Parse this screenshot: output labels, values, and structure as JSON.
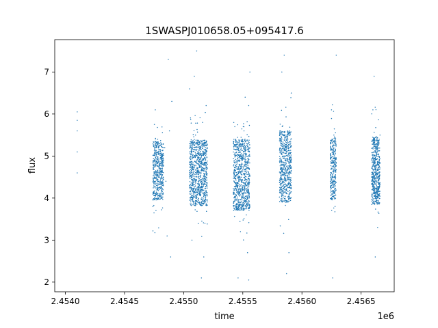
{
  "chart_data": {
    "type": "scatter",
    "title": "1SWASPJ010658.05+095417.6",
    "xlabel": "time",
    "ylabel": "flux",
    "x_offset_label": "1e6",
    "xlim": [
      2.45391,
      2.45678
    ],
    "ylim": [
      1.77,
      7.77
    ],
    "x_ticks": [
      {
        "value": 2.454,
        "label": "2.4540"
      },
      {
        "value": 2.4545,
        "label": "2.4545"
      },
      {
        "value": 2.455,
        "label": "2.4550"
      },
      {
        "value": 2.4555,
        "label": "2.4555"
      },
      {
        "value": 2.456,
        "label": "2.4560"
      },
      {
        "value": 2.4565,
        "label": "2.4565"
      }
    ],
    "y_ticks": [
      {
        "value": 2,
        "label": "2"
      },
      {
        "value": 3,
        "label": "3"
      },
      {
        "value": 4,
        "label": "4"
      },
      {
        "value": 5,
        "label": "5"
      },
      {
        "value": 6,
        "label": "6"
      },
      {
        "value": 7,
        "label": "7"
      }
    ],
    "grid": false,
    "point_color": "#1f77b4",
    "series": [
      {
        "values": [
          [
            2.4541,
            6.05
          ],
          [
            2.4541,
            5.85
          ],
          [
            2.4541,
            5.6
          ],
          [
            2.4541,
            5.1
          ],
          [
            2.4541,
            4.6
          ],
          [
            2.45475,
            4.9
          ],
          [
            2.45477,
            4.3
          ],
          [
            2.45478,
            5.4
          ],
          [
            2.4548,
            4.05
          ],
          [
            2.45481,
            5.0
          ],
          [
            2.45474,
            3.8
          ],
          [
            2.45482,
            4.7
          ],
          [
            2.45484,
            5.2
          ],
          [
            2.45485,
            4.4
          ],
          [
            2.45486,
            3.1
          ],
          [
            2.45488,
            5.6
          ],
          [
            2.45489,
            2.6
          ],
          [
            2.4549,
            6.3
          ],
          [
            2.45487,
            7.3
          ],
          [
            2.45476,
            6.1
          ],
          [
            2.45506,
            5.0
          ],
          [
            2.45508,
            4.2
          ],
          [
            2.4551,
            5.5
          ],
          [
            2.45512,
            3.9
          ],
          [
            2.45514,
            4.6
          ],
          [
            2.45516,
            5.8
          ],
          [
            2.45505,
            6.6
          ],
          [
            2.45518,
            3.4
          ],
          [
            2.4552,
            4.8
          ],
          [
            2.45511,
            7.5
          ],
          [
            2.45515,
            2.1
          ],
          [
            2.45517,
            2.6
          ],
          [
            2.45509,
            6.9
          ],
          [
            2.45507,
            3.0
          ],
          [
            2.45519,
            6.2
          ],
          [
            2.45543,
            4.5
          ],
          [
            2.45545,
            5.2
          ],
          [
            2.45547,
            3.9
          ],
          [
            2.45549,
            4.8
          ],
          [
            2.45551,
            5.6
          ],
          [
            2.45553,
            3.6
          ],
          [
            2.45555,
            2.05
          ],
          [
            2.45554,
            2.7
          ],
          [
            2.45552,
            6.4
          ],
          [
            2.45556,
            7.0
          ],
          [
            2.45548,
            3.2
          ],
          [
            2.45546,
            2.1
          ],
          [
            2.45544,
            5.4
          ],
          [
            2.4555,
            4.1
          ],
          [
            2.45555,
            6.2
          ],
          [
            2.45582,
            4.4
          ],
          [
            2.45584,
            5.0
          ],
          [
            2.45586,
            3.9
          ],
          [
            2.45588,
            5.6
          ],
          [
            2.4559,
            4.6
          ],
          [
            2.45583,
            7.0
          ],
          [
            2.45585,
            7.4
          ],
          [
            2.45587,
            2.2
          ],
          [
            2.45589,
            2.7
          ],
          [
            2.45591,
            6.5
          ],
          [
            2.45624,
            4.4
          ],
          [
            2.45626,
            5.1
          ],
          [
            2.45628,
            3.8
          ],
          [
            2.45627,
            5.5
          ],
          [
            2.45625,
            6.1
          ],
          [
            2.45626,
            2.1
          ],
          [
            2.45629,
            7.4
          ],
          [
            2.45659,
            4.5
          ],
          [
            2.45661,
            5.3
          ],
          [
            2.45663,
            3.9
          ],
          [
            2.45665,
            4.8
          ],
          [
            2.4566,
            6.1
          ],
          [
            2.45662,
            2.6
          ],
          [
            2.45664,
            3.3
          ],
          [
            2.45666,
            5.5
          ],
          [
            2.45661,
            6.9
          ]
        ]
      }
    ],
    "clusters": [
      {
        "t0": 2.45474,
        "t1": 2.45483,
        "center": 4.65,
        "half": 0.7,
        "n": 500
      },
      {
        "t0": 2.45505,
        "t1": 2.4552,
        "center": 4.6,
        "half": 0.78,
        "n": 900
      },
      {
        "t0": 2.45542,
        "t1": 2.45556,
        "center": 4.55,
        "half": 0.85,
        "n": 850
      },
      {
        "t0": 2.45581,
        "t1": 2.45591,
        "center": 4.75,
        "half": 0.85,
        "n": 600
      },
      {
        "t0": 2.45624,
        "t1": 2.45629,
        "center": 4.7,
        "half": 0.75,
        "n": 300
      },
      {
        "t0": 2.45659,
        "t1": 2.45666,
        "center": 4.65,
        "half": 0.8,
        "n": 550
      }
    ]
  }
}
